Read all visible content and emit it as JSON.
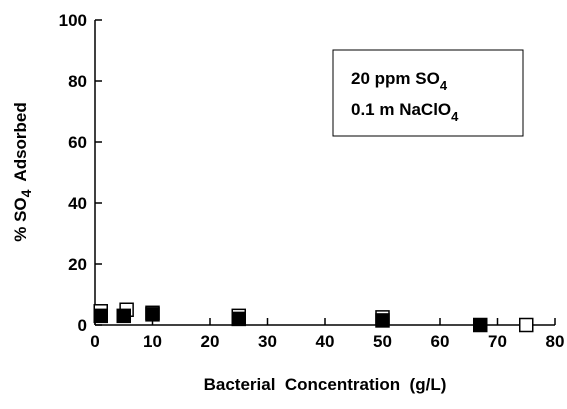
{
  "chart_data": {
    "type": "scatter",
    "x_label": "Bacterial  Concentration  (g/L)",
    "y_label": {
      "main": "% SO",
      "sub": "4",
      "rest": "Adsorbed"
    },
    "annotation": [
      {
        "main": "20 ppm SO",
        "sub": "4"
      },
      {
        "main": "0.1 m NaClO",
        "sub": "4"
      }
    ],
    "xlim": [
      0,
      80
    ],
    "xticks": [
      0,
      10,
      20,
      30,
      40,
      50,
      60,
      70,
      80
    ],
    "ylim": [
      0,
      100
    ],
    "yticks": [
      0,
      20,
      40,
      60,
      80,
      100
    ],
    "series": [
      {
        "color": "#000000",
        "marker": "open-square",
        "x": [
          1,
          5.5,
          10,
          25,
          50,
          75
        ],
        "values": [
          4.5,
          5,
          4,
          3,
          2.5,
          0
        ]
      },
      {
        "color": "#000000",
        "marker": "filled-square",
        "x": [
          1,
          5,
          10,
          25,
          50,
          67
        ],
        "values": [
          3,
          3,
          3.5,
          2,
          1.5,
          0
        ]
      }
    ]
  }
}
